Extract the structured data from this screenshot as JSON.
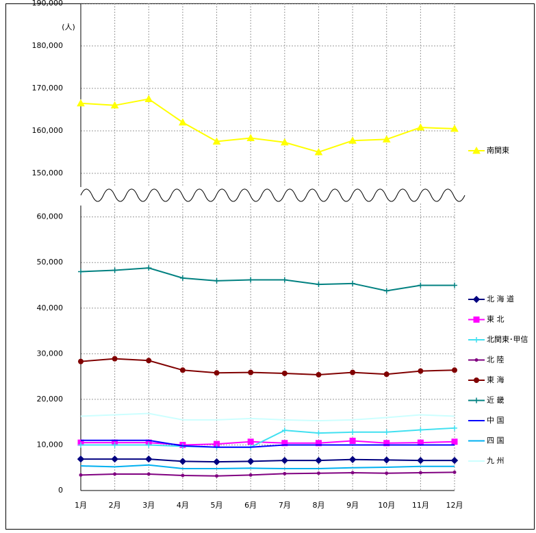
{
  "chart_data": {
    "type": "line",
    "y_label": "(人)",
    "categories": [
      "1月",
      "2月",
      "3月",
      "4月",
      "5月",
      "6月",
      "7月",
      "8月",
      "9月",
      "10月",
      "11月",
      "12月"
    ],
    "grid": true,
    "panels": [
      {
        "ylim": [
          145000,
          190000
        ],
        "yticks": [
          {
            "value": 150000,
            "label": "150,000"
          },
          {
            "value": 160000,
            "label": "160,000"
          },
          {
            "value": 170000,
            "label": "170,000"
          },
          {
            "value": 180000,
            "label": "180,000"
          },
          {
            "value": 190000,
            "label": "190,000"
          }
        ],
        "series": [
          {
            "name": "南関東",
            "color": "#ffff00",
            "marker": "triangle",
            "values": [
              166500,
              166000,
              167500,
              162000,
              157500,
              158300,
              157300,
              155000,
              157700,
              158000,
              160800,
              160500
            ]
          }
        ]
      },
      {
        "ylim": [
          0,
          62500
        ],
        "yticks": [
          0,
          {
            "value": 10000,
            "label": "10,000"
          },
          {
            "value": 20000,
            "label": "20,000"
          },
          {
            "value": 30000,
            "label": "30,000"
          },
          {
            "value": 40000,
            "label": "40,000"
          },
          {
            "value": 50000,
            "label": "50,000"
          },
          {
            "value": 60000,
            "label": "60,000"
          }
        ],
        "series": [
          {
            "name": "北 海 道",
            "color": "#000080",
            "marker": "diamond",
            "values": [
              6900,
              6900,
              6900,
              6400,
              6300,
              6400,
              6600,
              6600,
              6800,
              6700,
              6600,
              6600
            ]
          },
          {
            "name": "東 北",
            "color": "#ff00ff",
            "marker": "square",
            "values": [
              10500,
              10500,
              10500,
              10000,
              10200,
              10700,
              10400,
              10400,
              10900,
              10400,
              10500,
              10700
            ]
          },
          {
            "name": "北関東･甲信",
            "color": "#40e0f0",
            "marker": "plus",
            "values": [
              10000,
              10000,
              10000,
              9700,
              9500,
              9500,
              13200,
              12600,
              12800,
              12800,
              13300,
              13700
            ]
          },
          {
            "name": "北 陸",
            "color": "#800080",
            "marker": "dot",
            "values": [
              3400,
              3600,
              3600,
              3300,
              3200,
              3400,
              3700,
              3800,
              3900,
              3800,
              3900,
              4000
            ]
          },
          {
            "name": "東 海",
            "color": "#800000",
            "marker": "circle",
            "values": [
              28300,
              28900,
              28500,
              26400,
              25800,
              25900,
              25700,
              25400,
              25900,
              25500,
              26200,
              26400
            ]
          },
          {
            "name": "近 畿",
            "color": "#008080",
            "marker": "plus",
            "values": [
              48000,
              48300,
              48800,
              46600,
              46000,
              46200,
              46200,
              45200,
              45400,
              43800,
              45000,
              45000
            ]
          },
          {
            "name": "中 国",
            "color": "#0000ff",
            "marker": "none",
            "values": [
              11000,
              11000,
              11000,
              9800,
              9500,
              9500,
              10000,
              10000,
              10000,
              10000,
              10000,
              10000
            ]
          },
          {
            "name": "四 国",
            "color": "#00b0f0",
            "marker": "none",
            "values": [
              5400,
              5200,
              5600,
              4800,
              4800,
              4900,
              4800,
              4800,
              5000,
              5100,
              5300,
              5300
            ]
          },
          {
            "name": "九 州",
            "color": "#ccffff",
            "marker": "none",
            "values": [
              16300,
              16600,
              16900,
              15500,
              15500,
              15800,
              15500,
              15300,
              15500,
              16000,
              16600,
              16300
            ]
          }
        ]
      }
    ]
  }
}
